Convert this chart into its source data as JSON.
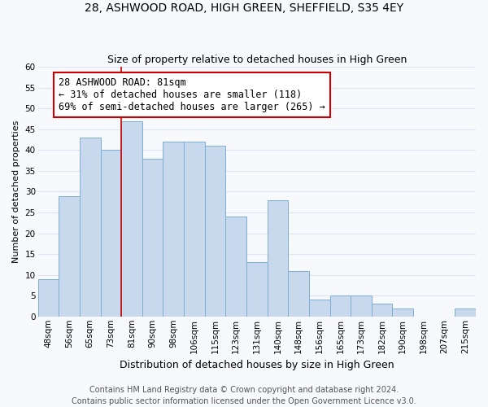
{
  "title": "28, ASHWOOD ROAD, HIGH GREEN, SHEFFIELD, S35 4EY",
  "subtitle": "Size of property relative to detached houses in High Green",
  "xlabel": "Distribution of detached houses by size in High Green",
  "ylabel": "Number of detached properties",
  "bin_labels": [
    "48sqm",
    "56sqm",
    "65sqm",
    "73sqm",
    "81sqm",
    "90sqm",
    "98sqm",
    "106sqm",
    "115sqm",
    "123sqm",
    "131sqm",
    "140sqm",
    "148sqm",
    "156sqm",
    "165sqm",
    "173sqm",
    "182sqm",
    "190sqm",
    "198sqm",
    "207sqm",
    "215sqm"
  ],
  "bar_heights": [
    9,
    29,
    43,
    40,
    47,
    38,
    42,
    42,
    41,
    24,
    13,
    28,
    11,
    4,
    5,
    5,
    3,
    2,
    0,
    0,
    2
  ],
  "bar_color": "#c9d9ed",
  "bar_edge_color": "#7aafd4",
  "vline_index": 4,
  "vline_color": "#cc0000",
  "annotation_text": "28 ASHWOOD ROAD: 81sqm\n← 31% of detached houses are smaller (118)\n69% of semi-detached houses are larger (265) →",
  "annotation_box_color": "#ffffff",
  "annotation_box_edge": "#cc0000",
  "ylim": [
    0,
    60
  ],
  "yticks": [
    0,
    5,
    10,
    15,
    20,
    25,
    30,
    35,
    40,
    45,
    50,
    55,
    60
  ],
  "footer1": "Contains HM Land Registry data © Crown copyright and database right 2024.",
  "footer2": "Contains public sector information licensed under the Open Government Licence v3.0.",
  "bg_color": "#f7f9fc",
  "plot_bg_color": "#f7f9fc",
  "grid_color": "#dde6f0",
  "title_fontsize": 10,
  "subtitle_fontsize": 9,
  "xlabel_fontsize": 9,
  "ylabel_fontsize": 8,
  "tick_fontsize": 7.5,
  "annotation_fontsize": 8.5,
  "footer_fontsize": 7
}
